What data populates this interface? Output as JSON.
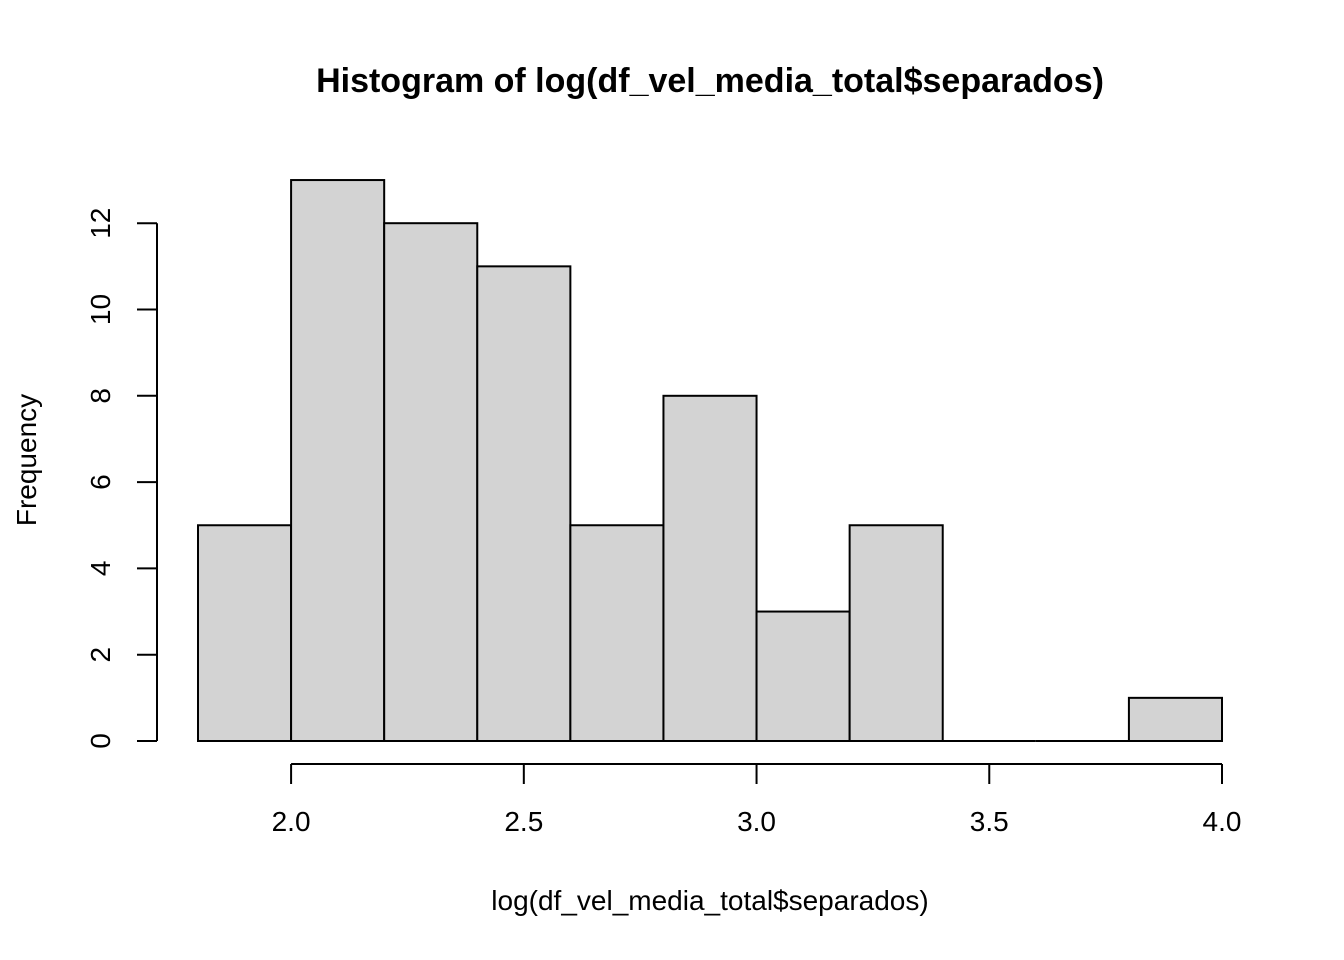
{
  "chart_data": {
    "type": "bar",
    "subtype": "histogram",
    "title": "Histogram of log(df_vel_media_total$separados)",
    "xlabel": "log(df_vel_media_total$separados)",
    "ylabel": "Frequency",
    "bins": [
      {
        "start": 1.8,
        "end": 2.0,
        "count": 5
      },
      {
        "start": 2.0,
        "end": 2.2,
        "count": 13
      },
      {
        "start": 2.2,
        "end": 2.4,
        "count": 12
      },
      {
        "start": 2.4,
        "end": 2.6,
        "count": 11
      },
      {
        "start": 2.6,
        "end": 2.8,
        "count": 5
      },
      {
        "start": 2.8,
        "end": 3.0,
        "count": 8
      },
      {
        "start": 3.0,
        "end": 3.2,
        "count": 3
      },
      {
        "start": 3.2,
        "end": 3.4,
        "count": 5
      },
      {
        "start": 3.4,
        "end": 3.6,
        "count": 0
      },
      {
        "start": 3.6,
        "end": 3.8,
        "count": 0
      },
      {
        "start": 3.8,
        "end": 4.0,
        "count": 1
      }
    ],
    "x_ticks": [
      2.0,
      2.5,
      3.0,
      3.5,
      4.0
    ],
    "x_tick_labels": [
      "2.0",
      "2.5",
      "3.0",
      "3.5",
      "4.0"
    ],
    "y_ticks": [
      0,
      2,
      4,
      6,
      8,
      10,
      12
    ],
    "y_tick_labels": [
      "0",
      "2",
      "4",
      "6",
      "8",
      "10",
      "12"
    ],
    "xlim": [
      1.8,
      4.0
    ],
    "ylim": [
      0,
      13
    ],
    "grid": false,
    "colors": {
      "bar_fill": "#d3d3d3",
      "bar_stroke": "#000000"
    }
  }
}
